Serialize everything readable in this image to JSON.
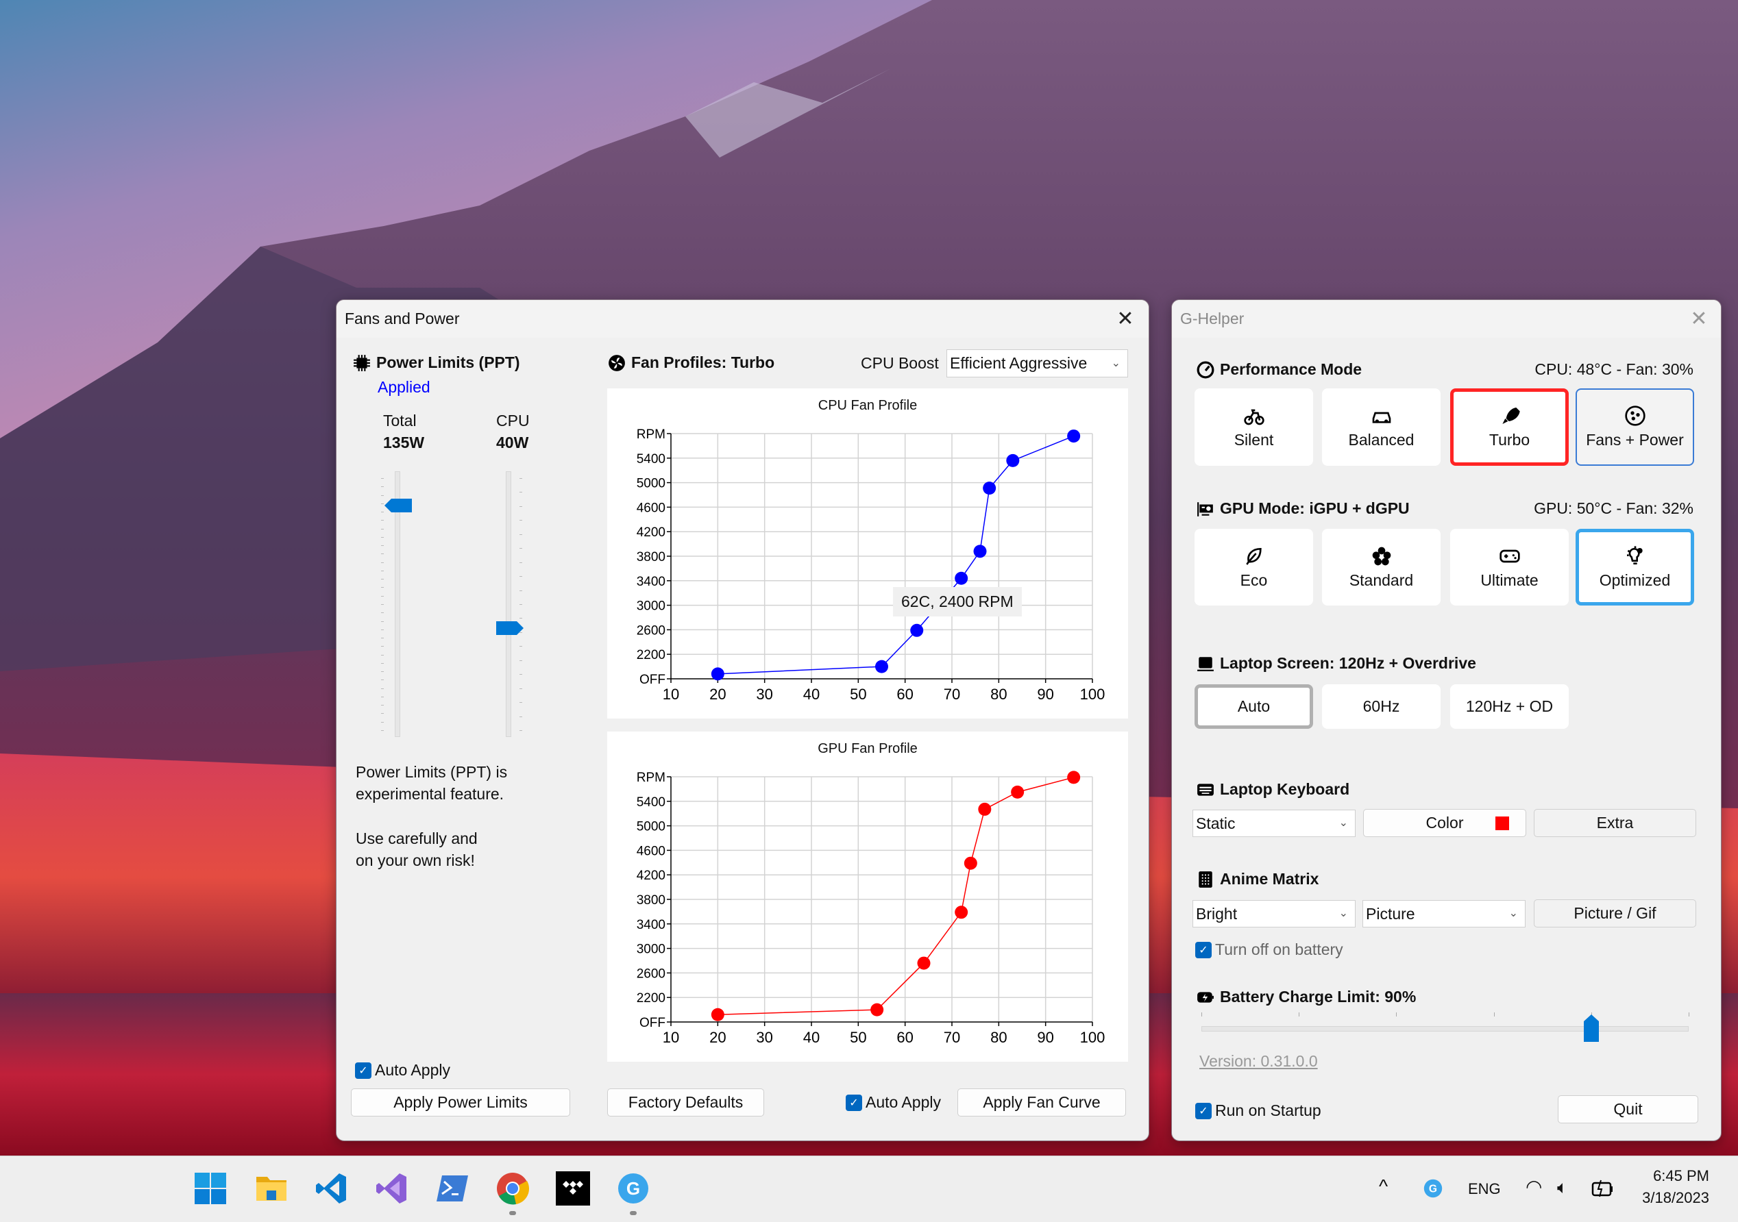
{
  "fans_window": {
    "title": "Fans and Power",
    "close_icon": "close-icon",
    "power": {
      "title": "Power Limits (PPT)",
      "status": "Applied",
      "status_color": "#0000ff",
      "total_label": "Total",
      "total_value": "135W",
      "total_level": 0.87,
      "cpu_label": "CPU",
      "cpu_value": "40W",
      "cpu_level": 0.41,
      "warning_1": "Power Limits (PPT) is",
      "warning_2": "experimental feature.",
      "warning_3": "Use carefully and",
      "warning_4": "on your own risk!",
      "auto_apply_label": "Auto Apply",
      "auto_apply_checked": true,
      "apply_button": "Apply Power Limits"
    },
    "fans": {
      "title": "Fan Profiles: Turbo",
      "boost_label": "CPU Boost",
      "boost_value": "Efficient Aggressive",
      "factory_button": "Factory Defaults",
      "auto_apply_label": "Auto Apply",
      "auto_apply_checked": true,
      "apply_button": "Apply Fan Curve"
    }
  },
  "ghelper": {
    "title": "G-Helper",
    "performance": {
      "title": "Performance Mode",
      "status": "CPU: 48°C -  Fan: 30%",
      "modes": [
        {
          "label": "Silent",
          "icon": "bicycle-icon",
          "state": "normal"
        },
        {
          "label": "Balanced",
          "icon": "car-icon",
          "state": "normal"
        },
        {
          "label": "Turbo",
          "icon": "rocket-icon",
          "state": "selected"
        },
        {
          "label": "Fans + Power",
          "icon": "fan-icon",
          "state": "focused"
        }
      ],
      "selected_color": "#ff2424"
    },
    "gpu": {
      "title": "GPU Mode: iGPU + dGPU",
      "status": "GPU: 50°C -  Fan: 32%",
      "modes": [
        {
          "label": "Eco",
          "icon": "leaf-icon",
          "state": "normal"
        },
        {
          "label": "Standard",
          "icon": "flower-icon",
          "state": "normal"
        },
        {
          "label": "Ultimate",
          "icon": "gamepad-icon",
          "state": "normal"
        },
        {
          "label": "Optimized",
          "icon": "lightbulb-gear-icon",
          "state": "selected"
        }
      ],
      "selected_color": "#3aa6ec"
    },
    "screen": {
      "title": "Laptop Screen: 120Hz + Overdrive",
      "modes": [
        {
          "label": "Auto",
          "state": "selected"
        },
        {
          "label": "60Hz",
          "state": "normal"
        },
        {
          "label": "120Hz + OD",
          "state": "normal"
        }
      ]
    },
    "keyboard": {
      "title": "Laptop Keyboard",
      "mode_value": "Static",
      "color_label": "Color",
      "color_value": "#ff0000",
      "extra_label": "Extra"
    },
    "anime": {
      "title": "Anime Matrix",
      "brightness_value": "Bright",
      "mode_value": "Picture",
      "picture_button": "Picture / Gif",
      "battery_off_label": "Turn off on battery",
      "battery_off_checked": true
    },
    "battery": {
      "title": "Battery Charge Limit: 90%",
      "min": 50,
      "max": 100,
      "value": 90
    },
    "version": "Version: 0.31.0.0",
    "startup_label": "Run on Startup",
    "startup_checked": true,
    "quit_label": "Quit"
  },
  "taskbar": {
    "apps": [
      "windows-start-icon",
      "file-explorer-icon",
      "vscode-icon",
      "visual-studio-icon",
      "powershell-icon",
      "chrome-icon",
      "tidal-icon",
      "ghelper-icon"
    ],
    "tray": {
      "language": "ENG",
      "time": "6:45 PM",
      "date": "3/18/2023"
    }
  },
  "chart_data": [
    {
      "type": "line",
      "title": "CPU Fan Profile",
      "xlim": [
        10,
        100
      ],
      "ylim": [
        1800,
        5800
      ],
      "x_ticks": [
        10,
        20,
        30,
        40,
        50,
        60,
        70,
        80,
        90,
        100
      ],
      "y_ticks": [
        1800,
        2200,
        2600,
        3000,
        3400,
        3800,
        4200,
        4600,
        5000,
        5400,
        5800
      ],
      "y_tick_labels": [
        "OFF",
        "2200",
        "2600",
        "3000",
        "3400",
        "3800",
        "4200",
        "4600",
        "5000",
        "5400",
        "RPM"
      ],
      "grid": true,
      "color": "#0000ff",
      "x": [
        20,
        55,
        62.5,
        72,
        76,
        78,
        83,
        96
      ],
      "y": [
        1880,
        2000,
        2590,
        3440,
        3880,
        4910,
        5360,
        5760
      ],
      "tooltip": "62C, 2400 RPM"
    },
    {
      "type": "line",
      "title": "GPU Fan Profile",
      "xlim": [
        10,
        100
      ],
      "ylim": [
        1800,
        5800
      ],
      "x_ticks": [
        10,
        20,
        30,
        40,
        50,
        60,
        70,
        80,
        90,
        100
      ],
      "y_ticks": [
        1800,
        2200,
        2600,
        3000,
        3400,
        3800,
        4200,
        4600,
        5000,
        5400,
        5800
      ],
      "y_tick_labels": [
        "OFF",
        "2200",
        "2600",
        "3000",
        "3400",
        "3800",
        "4200",
        "4600",
        "5000",
        "5400",
        "RPM"
      ],
      "grid": true,
      "color": "#ff0000",
      "x": [
        20,
        54,
        64,
        72,
        74,
        77,
        84,
        96
      ],
      "y": [
        1920,
        2000,
        2760,
        3590,
        4390,
        5270,
        5550,
        5790
      ]
    }
  ]
}
